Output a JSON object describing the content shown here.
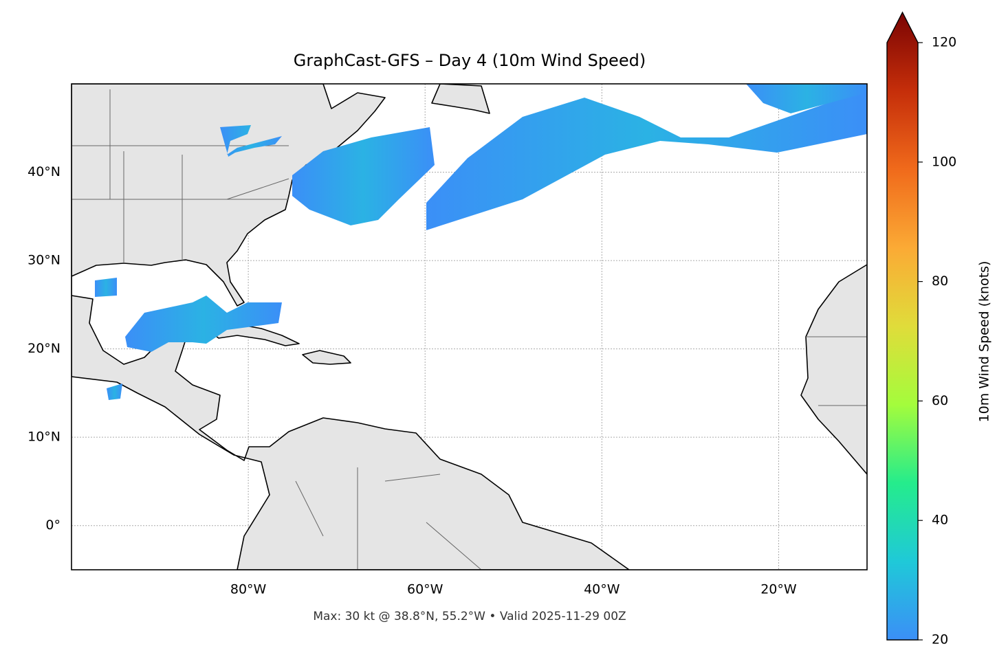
{
  "chart_data": {
    "type": "map",
    "title": "GraphCast-GFS – Day 4 (10m Wind Speed)",
    "footnote": "Max: 30 kt @ 38.8°N, 55.2°W • Valid 2025-11-29 00Z",
    "xlim": [
      -100,
      -10
    ],
    "ylim": [
      -5,
      50
    ],
    "xticks": [
      {
        "value": -80,
        "label": "80°W"
      },
      {
        "value": -60,
        "label": "60°W"
      },
      {
        "value": -40,
        "label": "40°W"
      },
      {
        "value": -20,
        "label": "20°W"
      }
    ],
    "yticks": [
      {
        "value": 0,
        "label": "0°"
      },
      {
        "value": 10,
        "label": "10°N"
      },
      {
        "value": 20,
        "label": "20°N"
      },
      {
        "value": 30,
        "label": "30°N"
      },
      {
        "value": 40,
        "label": "40°N"
      }
    ],
    "grid": true,
    "colorbar": {
      "label": "10m Wind Speed (knots)",
      "lim": [
        20,
        120
      ],
      "ticks": [
        20,
        40,
        60,
        80,
        100,
        120
      ],
      "extend": "max",
      "colors": [
        "#3b8ff7",
        "#1fc9d8",
        "#25ec8c",
        "#a4fc3c",
        "#e0dc3a",
        "#fbaa35",
        "#f06a1b",
        "#c52e0a",
        "#7a0403"
      ]
    }
  }
}
